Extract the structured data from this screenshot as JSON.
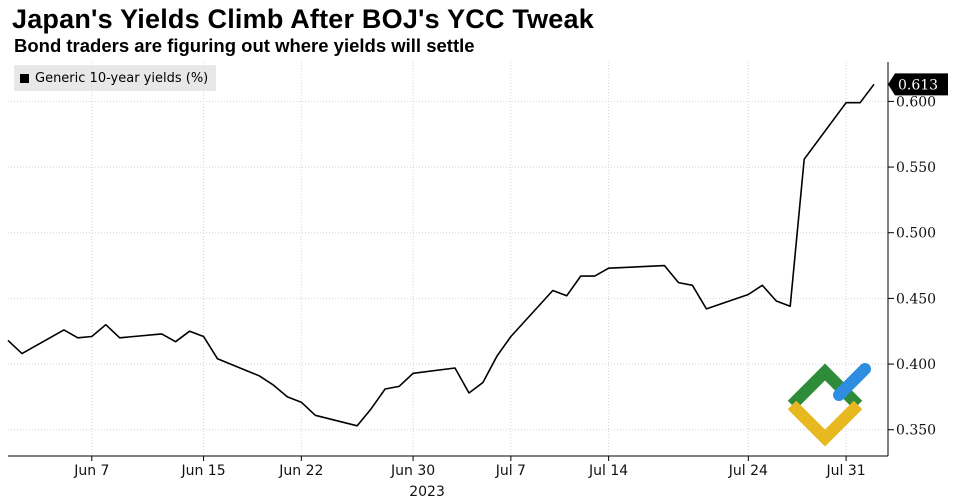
{
  "chart_data": {
    "type": "line",
    "title": "Japan's Yields Climb After BOJ's YCC Tweak",
    "subtitle": "Bond traders are figuring out where yields will settle",
    "legend": {
      "placement": "top-left",
      "entries": [
        "Generic 10-year yields (%)"
      ]
    },
    "ylim": [
      0.33,
      0.63
    ],
    "y_ticks": [
      0.35,
      0.4,
      0.45,
      0.5,
      0.55,
      0.6
    ],
    "y_tick_labels": [
      "0.350",
      "0.400",
      "0.450",
      "0.500",
      "0.550",
      "0.600"
    ],
    "y_axis_side": "right",
    "xlim": [
      "2023-06-01",
      "2023-08-03"
    ],
    "x_ticks": [
      "2023-06-07",
      "2023-06-15",
      "2023-06-22",
      "2023-06-30",
      "2023-07-07",
      "2023-07-14",
      "2023-07-24",
      "2023-07-31"
    ],
    "x_tick_labels": [
      "Jun 7",
      "Jun 15",
      "Jun 22",
      "Jun 30",
      "Jul 7",
      "Jul 14",
      "Jul 24",
      "Jul 31"
    ],
    "x_year_label": "2023",
    "grid": true,
    "last_value_label": "0.613",
    "series": [
      {
        "name": "Generic 10-year yields (%)",
        "color": "#000000",
        "x": [
          "2023-06-01",
          "2023-06-02",
          "2023-06-05",
          "2023-06-06",
          "2023-06-07",
          "2023-06-08",
          "2023-06-09",
          "2023-06-12",
          "2023-06-13",
          "2023-06-14",
          "2023-06-15",
          "2023-06-16",
          "2023-06-19",
          "2023-06-20",
          "2023-06-21",
          "2023-06-22",
          "2023-06-23",
          "2023-06-26",
          "2023-06-27",
          "2023-06-28",
          "2023-06-29",
          "2023-06-30",
          "2023-07-03",
          "2023-07-04",
          "2023-07-05",
          "2023-07-06",
          "2023-07-07",
          "2023-07-10",
          "2023-07-11",
          "2023-07-12",
          "2023-07-13",
          "2023-07-14",
          "2023-07-18",
          "2023-07-19",
          "2023-07-20",
          "2023-07-21",
          "2023-07-24",
          "2023-07-25",
          "2023-07-26",
          "2023-07-27",
          "2023-07-28",
          "2023-07-31",
          "2023-08-01",
          "2023-08-02"
        ],
        "values": [
          0.418,
          0.408,
          0.426,
          0.42,
          0.421,
          0.43,
          0.42,
          0.423,
          0.417,
          0.425,
          0.421,
          0.404,
          0.391,
          0.384,
          0.375,
          0.371,
          0.361,
          0.353,
          0.366,
          0.381,
          0.383,
          0.393,
          0.397,
          0.378,
          0.386,
          0.406,
          0.421,
          0.456,
          0.452,
          0.467,
          0.467,
          0.473,
          0.475,
          0.462,
          0.46,
          0.442,
          0.453,
          0.46,
          0.448,
          0.444,
          0.556,
          0.599,
          0.599,
          0.613
        ]
      }
    ]
  }
}
